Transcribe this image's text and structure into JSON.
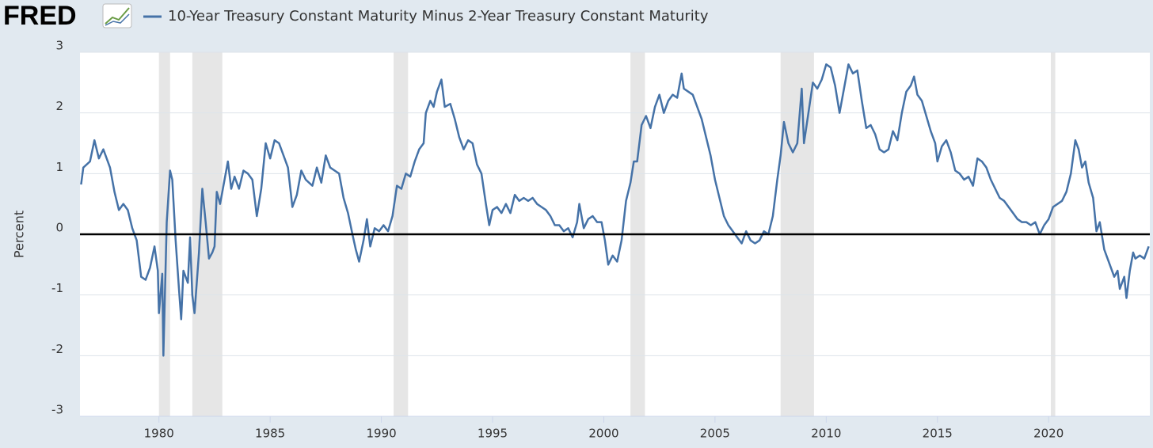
{
  "header": {
    "logo": "FRED"
  },
  "chart_data": {
    "type": "line",
    "y_label": "Percent",
    "x": [
      1976.5,
      1976.6,
      1976.9,
      1977.1,
      1977.3,
      1977.5,
      1977.8,
      1978.0,
      1978.2,
      1978.4,
      1978.6,
      1978.8,
      1979.0,
      1979.2,
      1979.4,
      1979.6,
      1979.8,
      1979.95,
      1980.0,
      1980.15,
      1980.2,
      1980.35,
      1980.5,
      1980.6,
      1980.75,
      1980.9,
      1981.0,
      1981.1,
      1981.3,
      1981.4,
      1981.5,
      1981.6,
      1981.8,
      1981.95,
      1982.1,
      1982.25,
      1982.4,
      1982.5,
      1982.6,
      1982.75,
      1982.9,
      1983.1,
      1983.25,
      1983.4,
      1983.6,
      1983.8,
      1984.0,
      1984.2,
      1984.4,
      1984.6,
      1984.8,
      1985.0,
      1985.2,
      1985.4,
      1985.6,
      1985.8,
      1986.0,
      1986.2,
      1986.4,
      1986.6,
      1986.9,
      1987.1,
      1987.3,
      1987.5,
      1987.7,
      1987.9,
      1988.1,
      1988.3,
      1988.5,
      1988.7,
      1988.85,
      1989.0,
      1989.2,
      1989.35,
      1989.5,
      1989.7,
      1989.9,
      1990.1,
      1990.3,
      1990.5,
      1990.7,
      1990.9,
      1991.1,
      1991.3,
      1991.5,
      1991.7,
      1991.9,
      1992.0,
      1992.2,
      1992.35,
      1992.5,
      1992.7,
      1992.85,
      1993.1,
      1993.3,
      1993.5,
      1993.7,
      1993.9,
      1994.1,
      1994.3,
      1994.5,
      1994.7,
      1994.85,
      1995.0,
      1995.2,
      1995.4,
      1995.6,
      1995.8,
      1996.0,
      1996.2,
      1996.4,
      1996.6,
      1996.8,
      1997.0,
      1997.2,
      1997.4,
      1997.6,
      1997.8,
      1998.0,
      1998.2,
      1998.4,
      1998.6,
      1998.8,
      1998.9,
      1999.1,
      1999.3,
      1999.5,
      1999.7,
      1999.9,
      2000.05,
      2000.2,
      2000.4,
      2000.6,
      2000.8,
      2001.0,
      2001.2,
      2001.35,
      2001.5,
      2001.7,
      2001.9,
      2002.1,
      2002.3,
      2002.5,
      2002.7,
      2002.9,
      2003.1,
      2003.3,
      2003.5,
      2003.6,
      2003.8,
      2004.0,
      2004.2,
      2004.4,
      2004.6,
      2004.8,
      2005.0,
      2005.2,
      2005.4,
      2005.6,
      2005.8,
      2006.0,
      2006.2,
      2006.4,
      2006.6,
      2006.8,
      2007.0,
      2007.2,
      2007.4,
      2007.6,
      2007.8,
      2007.95,
      2008.1,
      2008.3,
      2008.5,
      2008.7,
      2008.9,
      2009.0,
      2009.2,
      2009.4,
      2009.6,
      2009.8,
      2010.0,
      2010.2,
      2010.4,
      2010.6,
      2010.8,
      2011.0,
      2011.2,
      2011.4,
      2011.6,
      2011.8,
      2012.0,
      2012.2,
      2012.4,
      2012.6,
      2012.8,
      2013.0,
      2013.2,
      2013.4,
      2013.6,
      2013.8,
      2013.95,
      2014.1,
      2014.3,
      2014.5,
      2014.7,
      2014.9,
      2015.0,
      2015.2,
      2015.4,
      2015.6,
      2015.8,
      2016.0,
      2016.2,
      2016.4,
      2016.6,
      2016.8,
      2017.0,
      2017.2,
      2017.4,
      2017.6,
      2017.8,
      2018.0,
      2018.2,
      2018.4,
      2018.6,
      2018.8,
      2019.0,
      2019.2,
      2019.4,
      2019.6,
      2019.8,
      2020.0,
      2020.2,
      2020.4,
      2020.6,
      2020.8,
      2021.0,
      2021.2,
      2021.35,
      2021.5,
      2021.65,
      2021.8,
      2022.0,
      2022.15,
      2022.3,
      2022.5,
      2022.65,
      2022.8,
      2022.95,
      2023.1,
      2023.2,
      2023.4,
      2023.5,
      2023.65,
      2023.8,
      2023.9,
      2024.1,
      2024.3,
      2024.5
    ],
    "series": [
      {
        "name": "10-Year Treasury Constant Maturity Minus 2-Year Treasury Constant Maturity",
        "color": "#4572a7",
        "values": [
          0.82,
          1.1,
          1.2,
          1.55,
          1.25,
          1.4,
          1.1,
          0.7,
          0.4,
          0.5,
          0.4,
          0.1,
          -0.1,
          -0.7,
          -0.75,
          -0.55,
          -0.2,
          -0.6,
          -1.3,
          -0.65,
          -2.0,
          0.2,
          1.05,
          0.9,
          -0.1,
          -0.9,
          -1.4,
          -0.6,
          -0.8,
          -0.05,
          -1.0,
          -1.3,
          -0.3,
          0.75,
          0.2,
          -0.4,
          -0.3,
          -0.2,
          0.7,
          0.5,
          0.8,
          1.2,
          0.75,
          0.95,
          0.75,
          1.05,
          1.0,
          0.9,
          0.3,
          0.75,
          1.5,
          1.25,
          1.55,
          1.5,
          1.3,
          1.1,
          0.45,
          0.65,
          1.05,
          0.9,
          0.8,
          1.1,
          0.85,
          1.3,
          1.1,
          1.05,
          1.0,
          0.6,
          0.35,
          0.0,
          -0.25,
          -0.45,
          -0.1,
          0.25,
          -0.2,
          0.1,
          0.05,
          0.15,
          0.05,
          0.3,
          0.8,
          0.75,
          1.0,
          0.95,
          1.2,
          1.4,
          1.5,
          2.0,
          2.2,
          2.1,
          2.35,
          2.55,
          2.1,
          2.15,
          1.9,
          1.6,
          1.4,
          1.55,
          1.5,
          1.15,
          1.0,
          0.5,
          0.15,
          0.4,
          0.45,
          0.35,
          0.5,
          0.35,
          0.65,
          0.55,
          0.6,
          0.55,
          0.6,
          0.5,
          0.45,
          0.4,
          0.3,
          0.15,
          0.15,
          0.05,
          0.1,
          -0.05,
          0.2,
          0.5,
          0.1,
          0.25,
          0.3,
          0.2,
          0.2,
          -0.1,
          -0.5,
          -0.35,
          -0.45,
          -0.1,
          0.55,
          0.85,
          1.2,
          1.2,
          1.8,
          1.95,
          1.75,
          2.1,
          2.3,
          2.0,
          2.2,
          2.3,
          2.25,
          2.65,
          2.4,
          2.35,
          2.3,
          2.1,
          1.9,
          1.6,
          1.3,
          0.9,
          0.6,
          0.3,
          0.15,
          0.05,
          -0.05,
          -0.15,
          0.05,
          -0.1,
          -0.15,
          -0.1,
          0.05,
          0.0,
          0.3,
          0.9,
          1.3,
          1.85,
          1.5,
          1.35,
          1.5,
          2.4,
          1.5,
          2.0,
          2.5,
          2.4,
          2.55,
          2.8,
          2.75,
          2.45,
          2.0,
          2.4,
          2.8,
          2.65,
          2.7,
          2.2,
          1.75,
          1.8,
          1.65,
          1.4,
          1.35,
          1.4,
          1.7,
          1.55,
          2.0,
          2.35,
          2.45,
          2.6,
          2.3,
          2.2,
          1.95,
          1.7,
          1.5,
          1.2,
          1.45,
          1.55,
          1.35,
          1.05,
          1.0,
          0.9,
          0.95,
          0.8,
          1.25,
          1.2,
          1.1,
          0.9,
          0.75,
          0.6,
          0.55,
          0.45,
          0.35,
          0.25,
          0.2,
          0.2,
          0.15,
          0.2,
          0.0,
          0.15,
          0.25,
          0.45,
          0.5,
          0.55,
          0.7,
          1.0,
          1.55,
          1.4,
          1.1,
          1.2,
          0.85,
          0.6,
          0.05,
          0.2,
          -0.25,
          -0.4,
          -0.55,
          -0.7,
          -0.6,
          -0.9,
          -0.7,
          -1.05,
          -0.6,
          -0.3,
          -0.4,
          -0.35,
          -0.4,
          -0.2
        ]
      }
    ],
    "recessions": [
      [
        1980.0,
        1980.5
      ],
      [
        1981.5,
        1982.85
      ],
      [
        1990.55,
        1991.2
      ],
      [
        2001.2,
        2001.85
      ],
      [
        2007.95,
        2009.45
      ],
      [
        2020.1,
        2020.3
      ]
    ],
    "recession_color": "#e6e6e6",
    "xlim": [
      1976.45,
      2024.55
    ],
    "xticks": [
      1980,
      1985,
      1990,
      1995,
      2000,
      2005,
      2010,
      2015,
      2020
    ],
    "ylim": [
      -3,
      3
    ],
    "yticks": [
      3,
      2,
      1,
      0,
      -1,
      -2,
      -3
    ],
    "grid": true,
    "zero_line": true
  }
}
